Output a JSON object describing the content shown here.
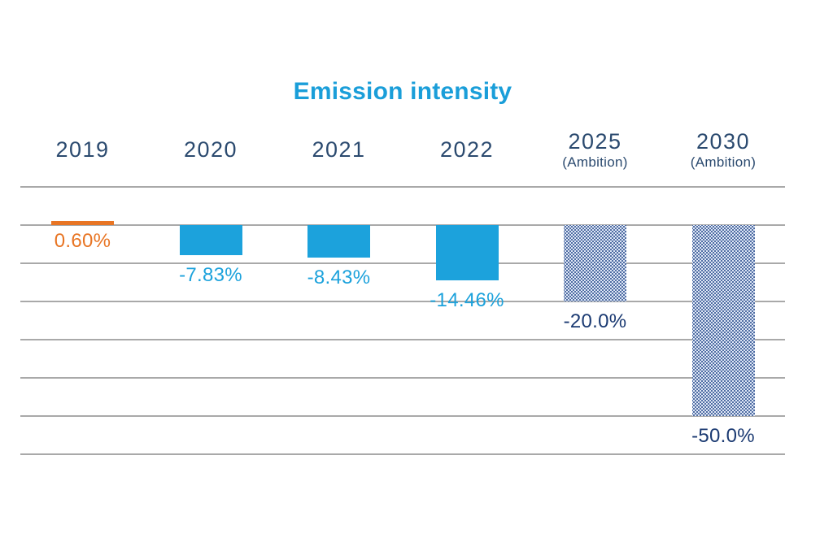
{
  "chart_data": {
    "type": "bar",
    "title": "Emission intensity",
    "xlabel": "",
    "ylabel": "",
    "categories": [
      "2019",
      "2020",
      "2021",
      "2022",
      "2025 (Ambition)",
      "2030 (Ambition)"
    ],
    "values": [
      0.6,
      -7.83,
      -8.43,
      -14.46,
      -20.0,
      -50.0
    ],
    "ylim": [
      -60,
      10
    ],
    "grid_step": 10,
    "grid": true,
    "legend_position": "none",
    "columns": [
      {
        "year": "2019",
        "sublabel": "",
        "value": 0.6,
        "label": "0.60%",
        "style": "marker",
        "label_color": "orange"
      },
      {
        "year": "2020",
        "sublabel": "",
        "value": -7.83,
        "label": "-7.83%",
        "style": "solid",
        "label_color": "cyan"
      },
      {
        "year": "2021",
        "sublabel": "",
        "value": -8.43,
        "label": "-8.43%",
        "style": "solid",
        "label_color": "cyan"
      },
      {
        "year": "2022",
        "sublabel": "",
        "value": -14.46,
        "label": "-14.46%",
        "style": "solid",
        "label_color": "cyan"
      },
      {
        "year": "2025",
        "sublabel": "(Ambition)",
        "value": -20.0,
        "label": "-20.0%",
        "style": "dotted",
        "label_color": "navy"
      },
      {
        "year": "2030",
        "sublabel": "(Ambition)",
        "value": -50.0,
        "label": "-50.0%",
        "style": "dotted",
        "label_color": "navy"
      }
    ]
  },
  "colors": {
    "title_cyan": "#1A9ED9",
    "bar_cyan": "#1CA2DC",
    "marker_orange": "#E87524",
    "header_navy": "#2B4A6F",
    "ambition_navy": "#1B3A72",
    "gridline_gray": "#A9A9A9",
    "dotted_fill": "#DFE7F6",
    "dotted_dot": "#2D4F8E"
  }
}
